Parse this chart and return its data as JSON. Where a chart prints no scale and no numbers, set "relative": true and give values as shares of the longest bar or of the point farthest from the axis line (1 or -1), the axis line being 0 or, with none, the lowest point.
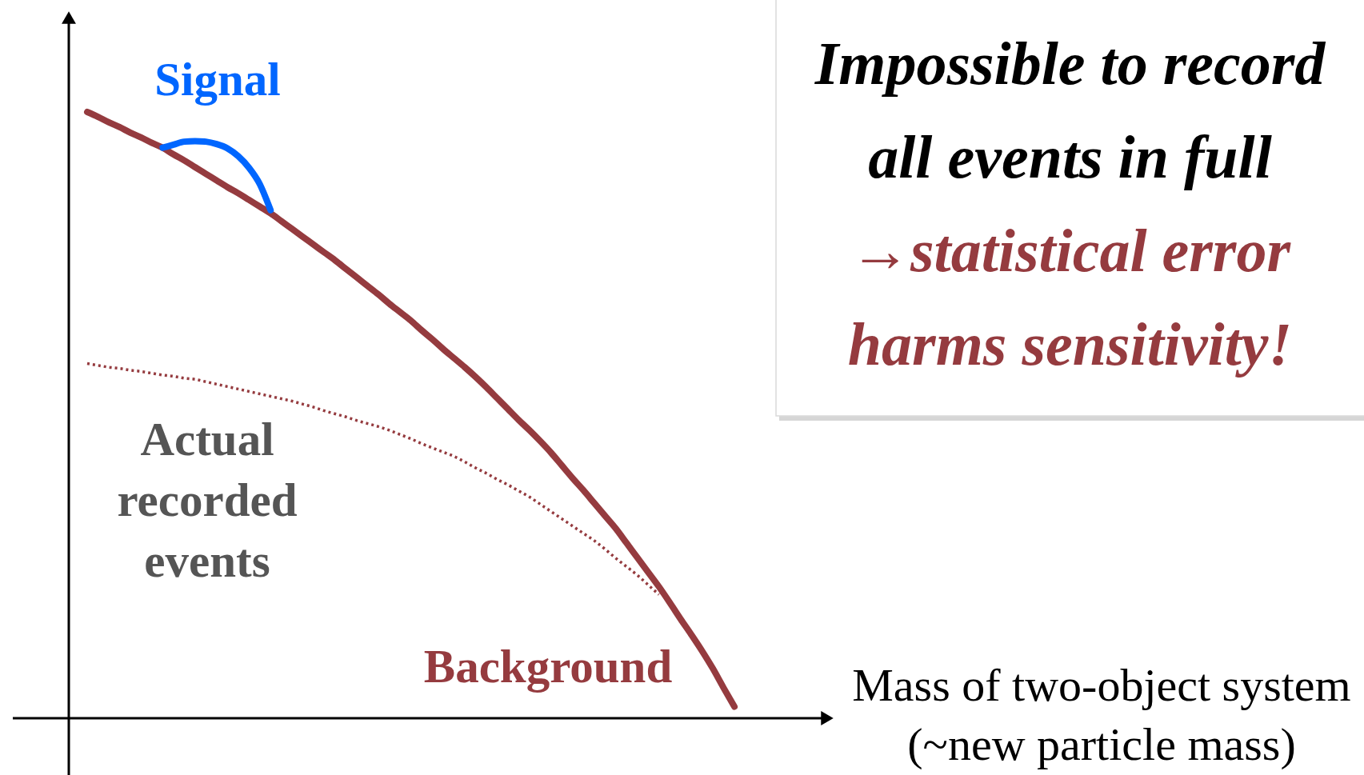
{
  "chart_data": {
    "type": "line",
    "relative": true,
    "categories": [
      null,
      null,
      null,
      null,
      null,
      null,
      null,
      null,
      null,
      null,
      null,
      null,
      null,
      null,
      null,
      null,
      null,
      null,
      null,
      null,
      null,
      null,
      null,
      null,
      null,
      null,
      null,
      null,
      null,
      null,
      null,
      null,
      null,
      null,
      null,
      null,
      null,
      null,
      null,
      null,
      null,
      null,
      null,
      null,
      null,
      null,
      null,
      null,
      null,
      null,
      null,
      null,
      null,
      null,
      null,
      null,
      null,
      null,
      null,
      null,
      null
    ],
    "xlabel": "Mass of two-object system (~new particle mass)",
    "annotations": [
      "Impossible to record all events in full",
      "→statistical error harms sensitivity!"
    ],
    "legend": false,
    "series": [
      {
        "name": "Background",
        "color": "#953b3f",
        "values": [
          1.0,
          0.992,
          0.983,
          0.975,
          0.966,
          0.958,
          0.949,
          0.941,
          0.93,
          0.92,
          0.909,
          0.898,
          0.887,
          0.876,
          0.866,
          0.855,
          0.844,
          0.833,
          0.82,
          0.807,
          0.794,
          0.781,
          0.768,
          0.755,
          0.741,
          0.727,
          0.713,
          0.699,
          0.684,
          0.67,
          0.656,
          0.64,
          0.625,
          0.609,
          0.594,
          0.579,
          0.563,
          0.546,
          0.528,
          0.51,
          0.492,
          0.475,
          0.457,
          0.438,
          0.417,
          0.396,
          0.376,
          0.355,
          0.334,
          0.313,
          0.289,
          0.265,
          0.241,
          0.217,
          0.191,
          0.164,
          0.138,
          0.111,
          0.082,
          0.05,
          0.019
        ]
      },
      {
        "name": "Signal",
        "color": "#0066ff",
        "values": [
          null,
          null,
          null,
          null,
          null,
          null,
          null,
          0.941,
          0.946,
          0.951,
          0.952,
          0.951,
          0.947,
          0.94,
          0.927,
          0.908,
          0.881,
          0.838,
          null,
          null,
          null,
          null,
          null,
          null,
          null,
          null,
          null,
          null,
          null,
          null,
          null,
          null,
          null,
          null,
          null,
          null,
          null,
          null,
          null,
          null,
          null,
          null,
          null,
          null,
          null,
          null,
          null,
          null,
          null,
          null,
          null,
          null,
          null,
          null,
          null,
          null,
          null,
          null,
          null,
          null,
          null
        ]
      },
      {
        "name": "Actual recorded events",
        "color": "#953b3f",
        "line_style": "dotted",
        "values": [
          0.585,
          0.582,
          0.579,
          0.577,
          0.574,
          0.572,
          0.569,
          0.566,
          0.564,
          0.561,
          0.559,
          0.555,
          0.551,
          0.547,
          0.543,
          0.539,
          0.535,
          0.531,
          0.527,
          0.523,
          0.518,
          0.513,
          0.507,
          0.502,
          0.497,
          0.491,
          0.486,
          0.481,
          0.475,
          0.468,
          0.461,
          0.453,
          0.446,
          0.439,
          0.432,
          0.423,
          0.413,
          0.404,
          0.394,
          0.385,
          0.375,
          0.365,
          0.353,
          0.341,
          0.329,
          0.317,
          0.305,
          0.293,
          0.279,
          0.264,
          0.25,
          0.236,
          0.22,
          0.204,
          null,
          null,
          null,
          null,
          null,
          null,
          null
        ]
      }
    ]
  }
}
